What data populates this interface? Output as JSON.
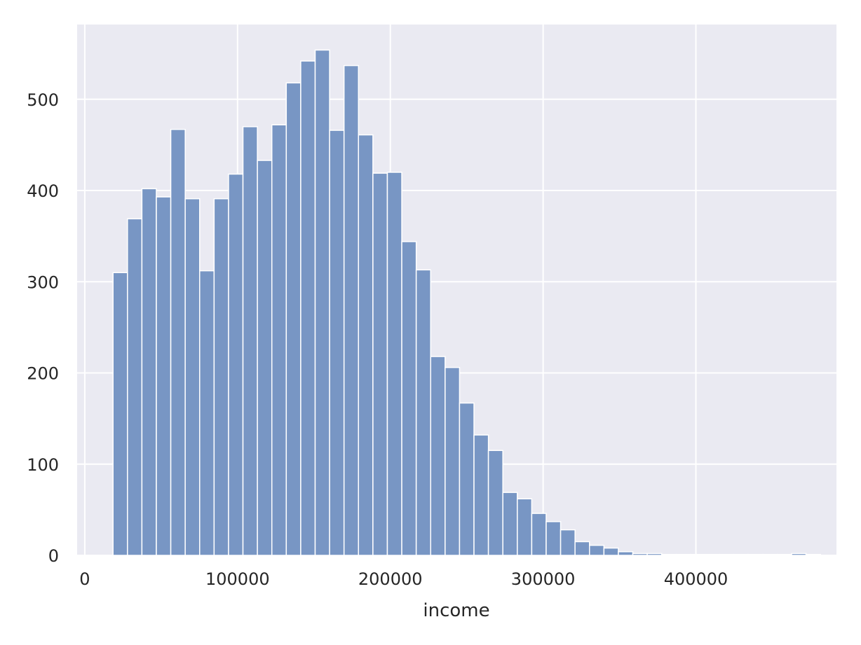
{
  "chart_data": {
    "type": "bar",
    "subtype": "histogram",
    "title": "",
    "xlabel": "income",
    "ylabel": "",
    "xlim": [
      -5000,
      492000
    ],
    "ylim": [
      0,
      582
    ],
    "grid": true,
    "colors": {
      "plot_background": "#eaeaf2",
      "grid": "#ffffff",
      "bar_fill": "#7896c4",
      "bar_edge": "#ffffff",
      "text": "#262626"
    },
    "x_ticks": [
      {
        "value": 0,
        "label": "0"
      },
      {
        "value": 100000,
        "label": "100000"
      },
      {
        "value": 200000,
        "label": "200000"
      },
      {
        "value": 300000,
        "label": "300000"
      },
      {
        "value": 400000,
        "label": "400000"
      }
    ],
    "y_ticks": [
      {
        "value": 0,
        "label": "0"
      },
      {
        "value": 100,
        "label": "100"
      },
      {
        "value": 200,
        "label": "200"
      },
      {
        "value": 300,
        "label": "300"
      },
      {
        "value": 400,
        "label": "400"
      },
      {
        "value": 500,
        "label": "500"
      }
    ],
    "bin_start": 18500,
    "bin_width": 9450,
    "counts": [
      310,
      369,
      402,
      393,
      467,
      391,
      312,
      391,
      418,
      470,
      433,
      472,
      518,
      542,
      554,
      466,
      537,
      461,
      419,
      420,
      344,
      313,
      218,
      206,
      167,
      132,
      115,
      69,
      62,
      46,
      37,
      28,
      15,
      11,
      8,
      4,
      2,
      2,
      1,
      1,
      1,
      1,
      1,
      1,
      1,
      1,
      1,
      2,
      1
    ]
  }
}
